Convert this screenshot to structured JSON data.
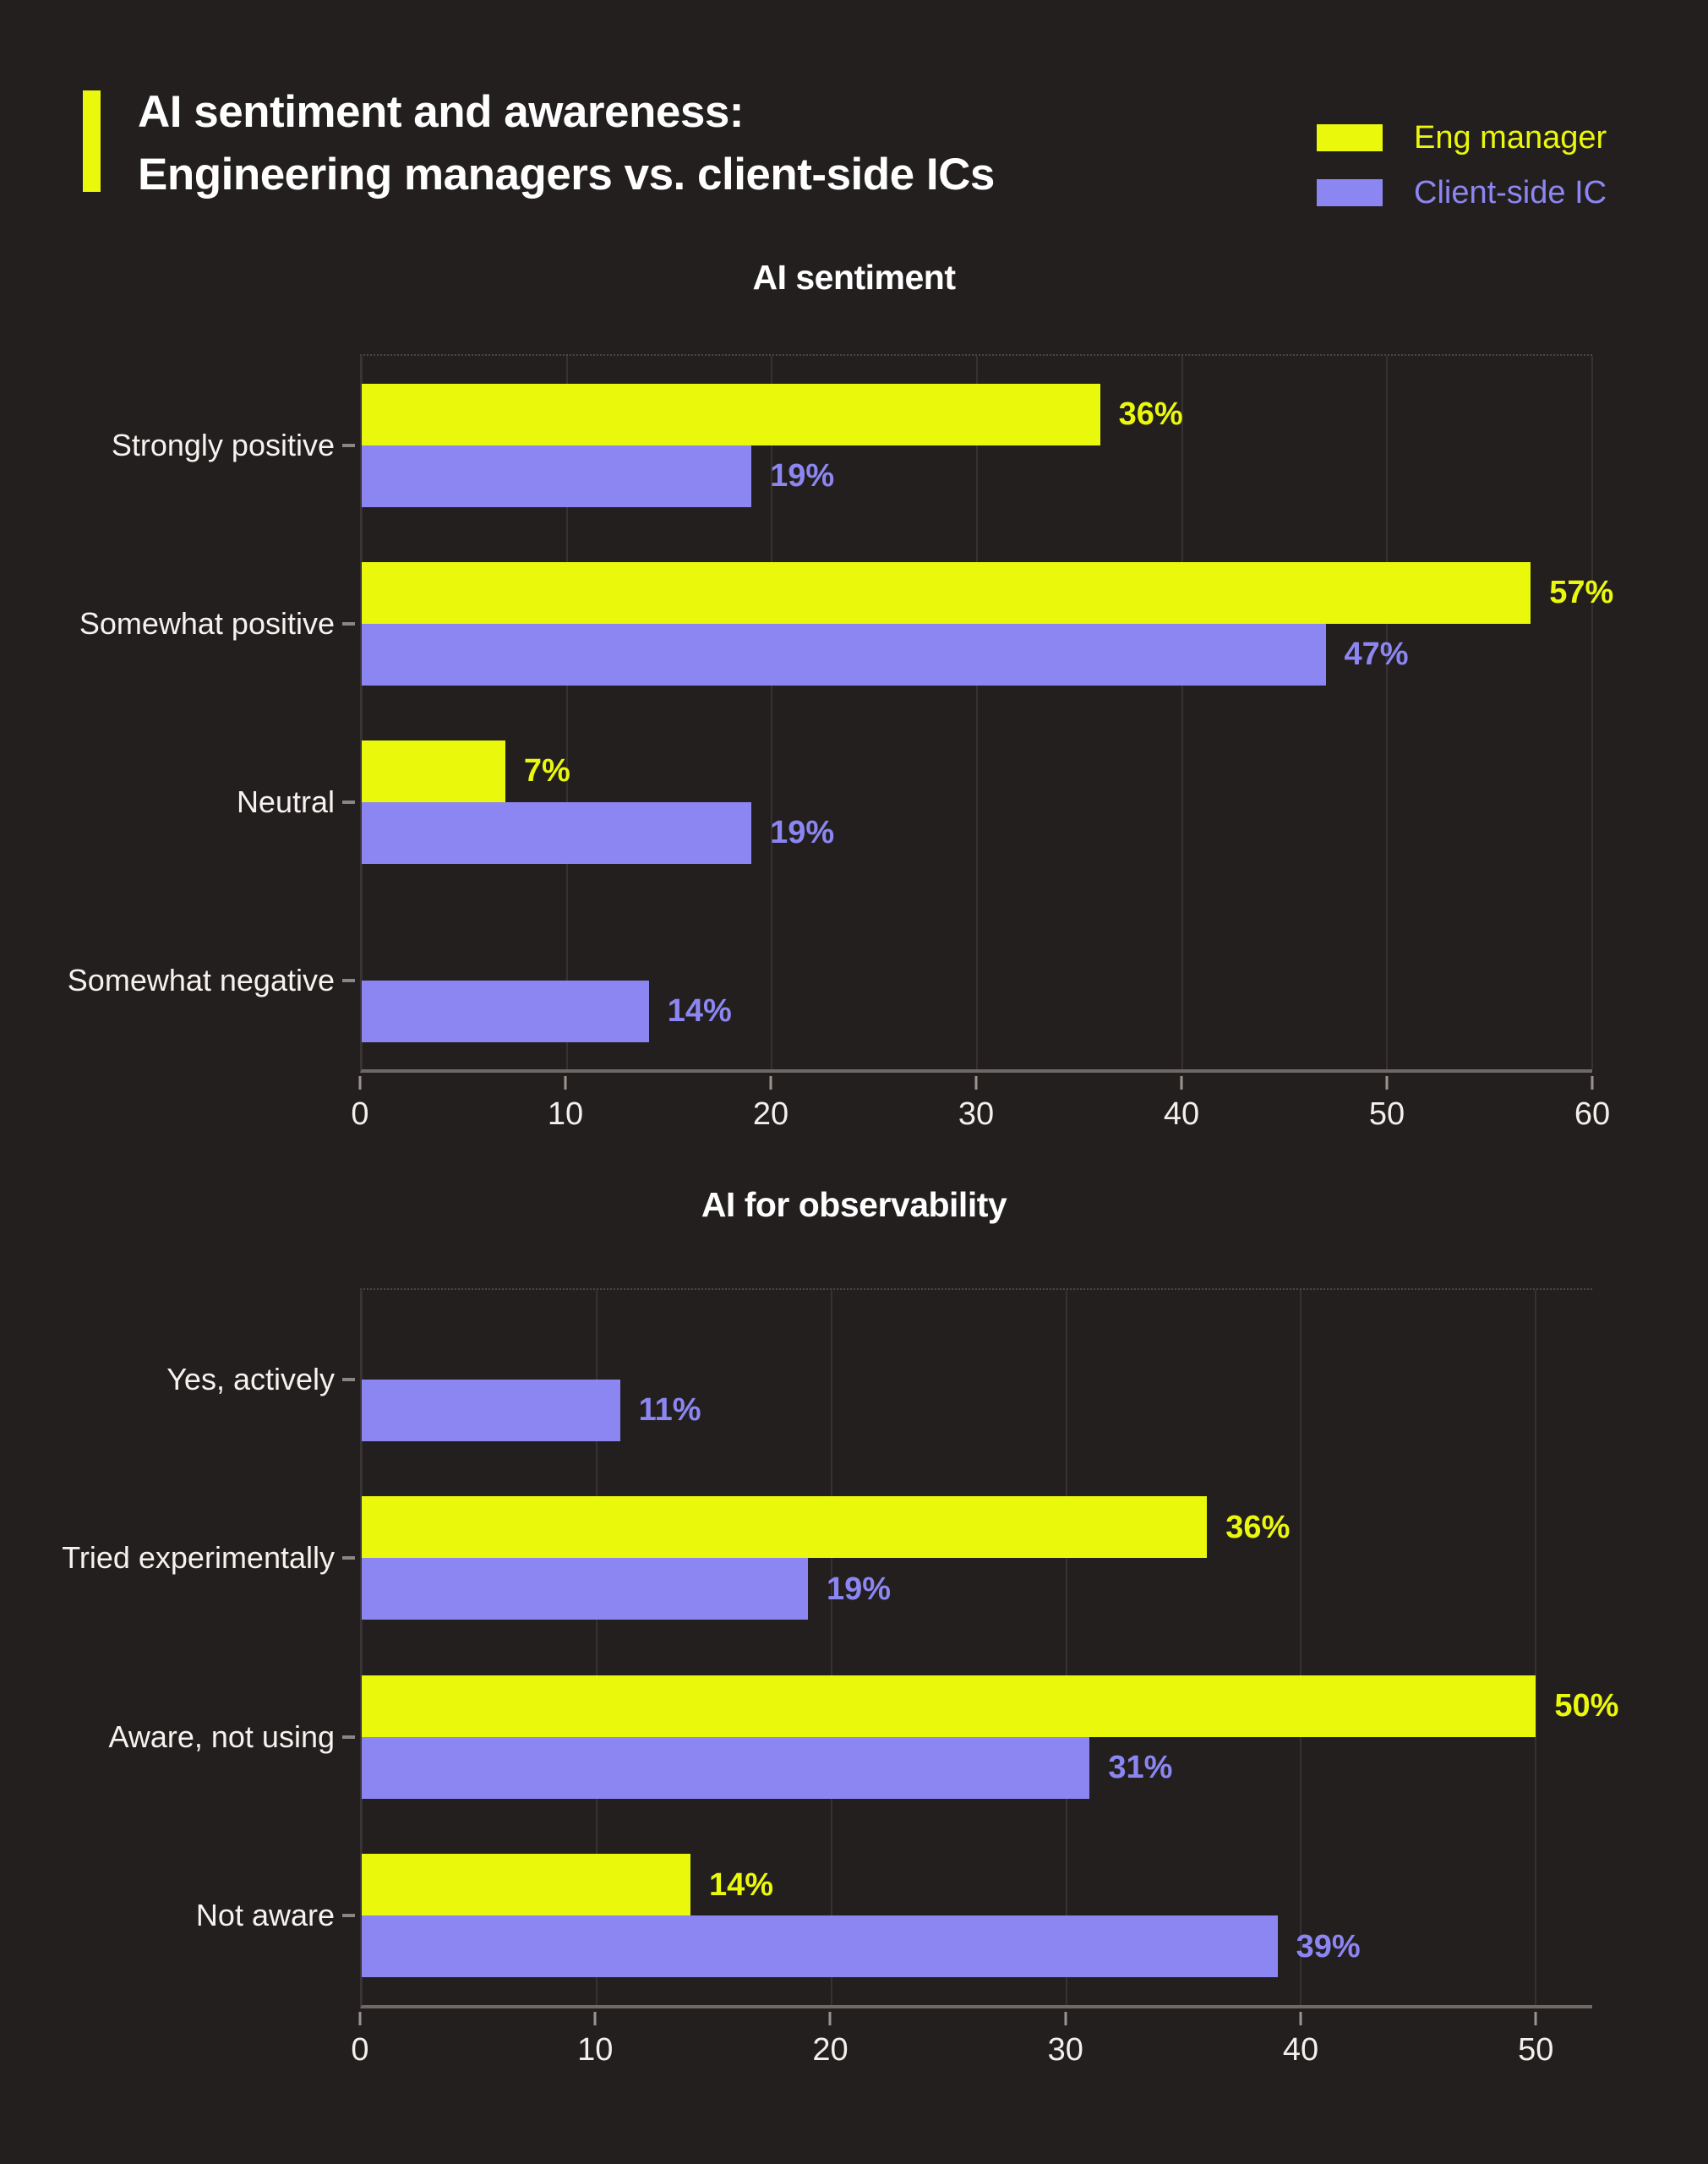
{
  "header": {
    "title_line1": "AI sentiment and awareness:",
    "title_line2": "Engineering managers vs. client-side ICs",
    "legend": [
      {
        "label": "Eng manager",
        "color": "#eaf80c"
      },
      {
        "label": "Client-side IC",
        "color": "#8c86f2"
      }
    ]
  },
  "colors": {
    "background": "#241f1f",
    "accent": "#eaf80c",
    "title_text": "#ffffff",
    "category_text": "#f5f2ef",
    "tick_text": "#f2efec",
    "grid": "#373131",
    "axis_line": "#6e6965",
    "tick_mark": "#9a9490",
    "category_dash": "#8b8683"
  },
  "chart_data": [
    {
      "type": "bar",
      "orientation": "horizontal",
      "title": "AI sentiment",
      "categories": [
        "Strongly positive",
        "Somewhat positive",
        "Neutral",
        "Somewhat negative"
      ],
      "series": [
        {
          "name": "Eng manager",
          "color": "#eaf80c",
          "values": [
            36,
            57,
            7,
            null
          ]
        },
        {
          "name": "Client-side IC",
          "color": "#8c86f2",
          "values": [
            19,
            47,
            19,
            14
          ]
        }
      ],
      "xlim": [
        0,
        60
      ],
      "xticks": [
        0,
        10,
        20,
        30,
        40,
        50,
        60
      ],
      "value_suffix": "%",
      "grid": true,
      "legend_position": "top-right"
    },
    {
      "type": "bar",
      "orientation": "horizontal",
      "title": "AI for observability",
      "categories": [
        "Yes, actively",
        "Tried experimentally",
        "Aware, not using",
        "Not aware"
      ],
      "series": [
        {
          "name": "Eng manager",
          "color": "#eaf80c",
          "values": [
            null,
            36,
            50,
            14
          ]
        },
        {
          "name": "Client-side IC",
          "color": "#8c86f2",
          "values": [
            11,
            19,
            31,
            39
          ]
        }
      ],
      "xlim": [
        0,
        52.4
      ],
      "xticks": [
        0,
        10,
        20,
        30,
        40,
        50
      ],
      "value_suffix": "%",
      "grid": true,
      "legend_position": "top-right"
    }
  ]
}
